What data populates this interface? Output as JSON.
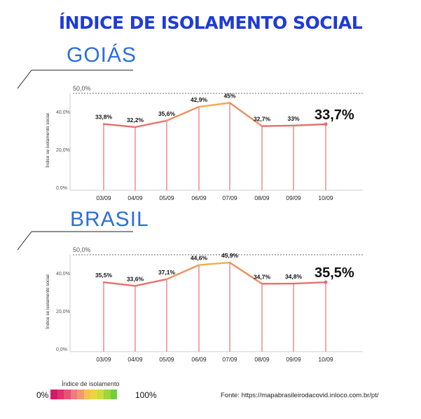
{
  "title": "ÍNDICE DE ISOLAMENTO SOCIAL",
  "colors": {
    "title": "#1f3bd6",
    "region": "#2d6fd6",
    "low": "#e46a72",
    "high": "#f2b14a",
    "stem": "#d8545f"
  },
  "chart_data": [
    {
      "type": "line",
      "region": "GOIÁS",
      "categories": [
        "03/09",
        "04/09",
        "05/09",
        "06/09",
        "07/09",
        "08/09",
        "09/09",
        "10/09"
      ],
      "values": [
        33.8,
        32.2,
        35.6,
        42.9,
        45,
        32.7,
        33,
        33.7
      ],
      "labels": [
        "33,8%",
        "32,2%",
        "35,6%",
        "42,9%",
        "45%",
        "32,7%",
        "33%"
      ],
      "highlight": "33,7%",
      "ylabel": "Índice se isolamento social",
      "yticks": [
        "0,0%",
        "20,0%",
        "40,0%"
      ],
      "ref_label": "50,0%",
      "ylim": [
        0,
        50
      ]
    },
    {
      "type": "line",
      "region": "BRASIL",
      "categories": [
        "03/09",
        "04/09",
        "05/09",
        "06/09",
        "07/09",
        "08/09",
        "09/09",
        "10/09"
      ],
      "values": [
        35.5,
        33.6,
        37.1,
        44.6,
        45.9,
        34.7,
        34.8,
        35.5
      ],
      "labels": [
        "35,5%",
        "33,6%",
        "37,1%",
        "44,6%",
        "45,9%",
        "34,7%",
        "34,8%"
      ],
      "highlight": "35,5%",
      "ylabel": "Índice se isolamento social",
      "yticks": [
        "0,0%",
        "20,0%",
        "40,0%"
      ],
      "ref_label": "50,0%",
      "ylim": [
        0,
        50
      ]
    }
  ],
  "legend": {
    "title": "Índice de isolamento",
    "low": "0%",
    "high": "100%",
    "colors": [
      "#d6186a",
      "#e3306f",
      "#ec5078",
      "#f07a7e",
      "#f39a6d",
      "#f6c04e",
      "#e9d63f",
      "#c9de3c",
      "#9fd63b",
      "#6fcf3a"
    ]
  },
  "source": "Fonte: https://mapabrasileirodacovid.inloco.com.br/pt/"
}
